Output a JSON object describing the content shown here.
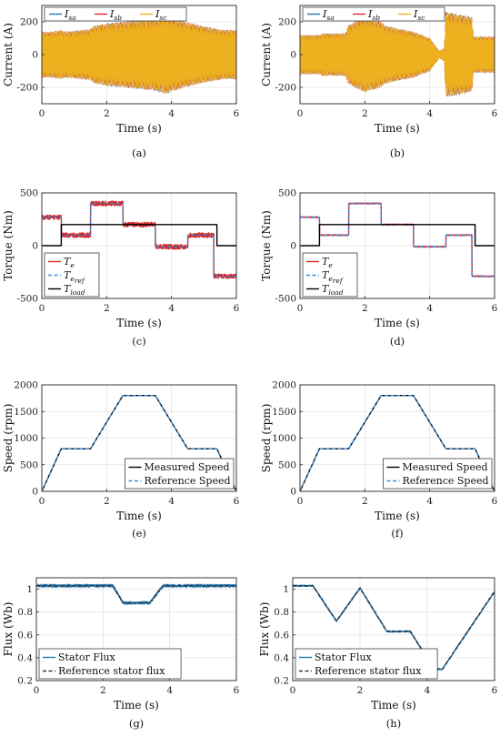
{
  "chart_data": [
    {
      "id": "a",
      "caption": "(a)",
      "type": "line",
      "xlabel": "Time (s)",
      "ylabel": "Current (A)",
      "xlim": [
        0,
        6
      ],
      "ylim": [
        -300,
        300
      ],
      "xticks": [
        0,
        2,
        4,
        6
      ],
      "yticks": [
        -200,
        0,
        200
      ],
      "xtick_labels": [
        "0",
        "2",
        "4",
        "6"
      ],
      "ytick_labels": [
        "-200",
        "0",
        "200"
      ],
      "grid": true,
      "legend_position": "top-left",
      "legend_layout": "horizontal",
      "series": [
        {
          "name": "I",
          "sub": "sa",
          "color": "#1f77b4",
          "style": "solid",
          "kind": "ac"
        },
        {
          "name": "I",
          "sub": "sb",
          "color": "#d62728",
          "style": "solid",
          "kind": "ac"
        },
        {
          "name": "I",
          "sub": "sc",
          "color": "#edb120",
          "style": "solid",
          "kind": "ac"
        }
      ],
      "envelope": {
        "x": [
          0,
          0.3,
          0.6,
          0.7,
          1.5,
          1.6,
          2.0,
          2.5,
          3.5,
          3.8,
          4.0,
          4.5,
          5.3,
          5.6,
          5.9,
          6.0
        ],
        "amp": [
          140,
          140,
          150,
          140,
          155,
          175,
          190,
          200,
          220,
          240,
          225,
          195,
          160,
          150,
          150,
          150
        ]
      }
    },
    {
      "id": "b",
      "caption": "(b)",
      "type": "line",
      "xlabel": "Time (s)",
      "ylabel": "Current (A)",
      "xlim": [
        0,
        6
      ],
      "ylim": [
        -300,
        300
      ],
      "xticks": [
        0,
        2,
        4,
        6
      ],
      "yticks": [
        -200,
        0,
        200
      ],
      "xtick_labels": [
        "0",
        "2",
        "4",
        "6"
      ],
      "ytick_labels": [
        "-200",
        "0",
        "200"
      ],
      "grid": true,
      "legend_position": "top-left",
      "legend_layout": "horizontal",
      "series": [
        {
          "name": "I",
          "sub": "sa",
          "color": "#1f77b4",
          "style": "solid",
          "kind": "ac"
        },
        {
          "name": "I",
          "sub": "sb",
          "color": "#d62728",
          "style": "solid",
          "kind": "ac"
        },
        {
          "name": "I",
          "sub": "sc",
          "color": "#edb120",
          "style": "solid",
          "kind": "ac"
        }
      ],
      "envelope": {
        "x": [
          0,
          0.6,
          0.7,
          1.4,
          1.5,
          2.0,
          2.5,
          2.6,
          3.0,
          3.5,
          4.0,
          4.3,
          4.45,
          4.5,
          5.3,
          5.35,
          6.0
        ],
        "amp": [
          120,
          120,
          130,
          130,
          180,
          230,
          200,
          180,
          160,
          140,
          100,
          20,
          40,
          260,
          230,
          110,
          110
        ]
      }
    },
    {
      "id": "c",
      "caption": "(c)",
      "type": "line",
      "xlabel": "Time (s)",
      "ylabel": "Torque (Nm)",
      "xlim": [
        0,
        6
      ],
      "ylim": [
        -500,
        500
      ],
      "xticks": [
        0,
        2,
        4,
        6
      ],
      "yticks": [
        -500,
        0,
        500
      ],
      "xtick_labels": [
        "0",
        "2",
        "4",
        "6"
      ],
      "ytick_labels": [
        "-500",
        "0",
        "500"
      ],
      "grid": true,
      "legend_position": "bottom-left",
      "legend_layout": "vertical",
      "series": [
        {
          "name": "T",
          "sub": "e",
          "color": "#d62728",
          "style": "solid",
          "kind": "step",
          "x": [
            0,
            0.6,
            0.6,
            1.5,
            1.5,
            2.5,
            2.5,
            3.5,
            3.5,
            4.5,
            4.5,
            5.3,
            5.3,
            6.0
          ],
          "y": [
            270,
            270,
            100,
            100,
            400,
            400,
            200,
            200,
            -10,
            -10,
            100,
            100,
            -290,
            -290
          ],
          "noise": 22
        },
        {
          "name": "T",
          "sub": "e",
          "subsub": "ref",
          "color": "#3a8fd9",
          "style": "dashed",
          "kind": "step",
          "x": [
            0,
            0.6,
            0.6,
            1.5,
            1.5,
            2.5,
            2.5,
            3.5,
            3.5,
            4.5,
            4.5,
            5.3,
            5.3,
            6.0
          ],
          "y": [
            270,
            270,
            100,
            100,
            400,
            400,
            200,
            200,
            -10,
            -10,
            100,
            100,
            -290,
            -290
          ]
        },
        {
          "name": "T",
          "sub": "load",
          "color": "#000000",
          "style": "solid",
          "kind": "step",
          "x": [
            0,
            0.6,
            0.6,
            5.4,
            5.4,
            6.0
          ],
          "y": [
            0,
            0,
            200,
            200,
            0,
            0
          ]
        }
      ]
    },
    {
      "id": "d",
      "caption": "(d)",
      "type": "line",
      "xlabel": "Time (s)",
      "ylabel": "Torque (Nm)",
      "xlim": [
        0,
        6
      ],
      "ylim": [
        -500,
        500
      ],
      "xticks": [
        0,
        2,
        4,
        6
      ],
      "yticks": [
        -500,
        0,
        500
      ],
      "xtick_labels": [
        "0",
        "2",
        "4",
        "6"
      ],
      "ytick_labels": [
        "-500",
        "0",
        "500"
      ],
      "grid": true,
      "legend_position": "bottom-left",
      "legend_layout": "vertical",
      "series": [
        {
          "name": "T",
          "sub": "e",
          "color": "#d62728",
          "style": "solid",
          "kind": "step",
          "x": [
            0,
            0.6,
            0.6,
            1.5,
            1.5,
            2.5,
            2.5,
            3.5,
            3.5,
            4.5,
            4.5,
            5.3,
            5.3,
            6.0
          ],
          "y": [
            270,
            270,
            100,
            100,
            400,
            400,
            200,
            200,
            -10,
            -10,
            100,
            100,
            -290,
            -290
          ],
          "noise": 4
        },
        {
          "name": "T",
          "sub": "e",
          "subsub": "ref",
          "color": "#3a8fd9",
          "style": "dashed",
          "kind": "step",
          "x": [
            0,
            0.6,
            0.6,
            1.5,
            1.5,
            2.5,
            2.5,
            3.5,
            3.5,
            4.5,
            4.5,
            5.3,
            5.3,
            6.0
          ],
          "y": [
            270,
            270,
            100,
            100,
            400,
            400,
            200,
            200,
            -10,
            -10,
            100,
            100,
            -290,
            -290
          ]
        },
        {
          "name": "T",
          "sub": "load",
          "color": "#000000",
          "style": "solid",
          "kind": "step",
          "x": [
            0,
            0.6,
            0.6,
            5.4,
            5.4,
            6.0
          ],
          "y": [
            0,
            0,
            200,
            200,
            0,
            0
          ]
        }
      ]
    },
    {
      "id": "e",
      "caption": "(e)",
      "type": "line",
      "xlabel": "Time (s)",
      "ylabel": "Speed (rpm)",
      "xlim": [
        0,
        6
      ],
      "ylim": [
        0,
        2000
      ],
      "xticks": [
        0,
        2,
        4,
        6
      ],
      "yticks": [
        0,
        500,
        1000,
        1500,
        2000
      ],
      "xtick_labels": [
        "0",
        "2",
        "4",
        "6"
      ],
      "ytick_labels": [
        "0",
        "500",
        "1000",
        "1500",
        "2000"
      ],
      "grid": true,
      "legend_position": "bottom-right",
      "legend_layout": "vertical",
      "series": [
        {
          "name": "Measured Speed",
          "color": "#000000",
          "style": "solid",
          "kind": "line",
          "x": [
            0,
            0.6,
            1.5,
            2.5,
            3.5,
            4.5,
            5.4,
            6.0
          ],
          "y": [
            0,
            800,
            800,
            1800,
            1800,
            800,
            800,
            0
          ]
        },
        {
          "name": "Reference Speed",
          "color": "#3a8fd9",
          "style": "dashed",
          "kind": "line",
          "x": [
            0,
            0.6,
            1.5,
            2.5,
            3.5,
            4.5,
            5.4,
            6.0
          ],
          "y": [
            0,
            800,
            800,
            1800,
            1800,
            800,
            800,
            0
          ]
        }
      ]
    },
    {
      "id": "f",
      "caption": "(f)",
      "type": "line",
      "xlabel": "Time (s)",
      "ylabel": "Speed (rpm)",
      "xlim": [
        0,
        6
      ],
      "ylim": [
        0,
        2000
      ],
      "xticks": [
        0,
        2,
        4,
        6
      ],
      "yticks": [
        0,
        500,
        1000,
        1500,
        2000
      ],
      "xtick_labels": [
        "0",
        "2",
        "4",
        "6"
      ],
      "ytick_labels": [
        "0",
        "500",
        "1000",
        "1500",
        "2000"
      ],
      "grid": true,
      "legend_position": "bottom-right",
      "legend_layout": "vertical",
      "series": [
        {
          "name": "Measured Speed",
          "color": "#000000",
          "style": "solid",
          "kind": "line",
          "x": [
            0,
            0.6,
            1.5,
            2.5,
            3.5,
            4.5,
            5.4,
            6.0
          ],
          "y": [
            0,
            800,
            800,
            1800,
            1800,
            800,
            800,
            0
          ]
        },
        {
          "name": "Reference Speed",
          "color": "#3a8fd9",
          "style": "dashed",
          "kind": "line",
          "x": [
            0,
            0.6,
            1.5,
            2.5,
            3.5,
            4.5,
            5.4,
            6.0
          ],
          "y": [
            0,
            800,
            800,
            1800,
            1800,
            800,
            800,
            0
          ]
        }
      ]
    },
    {
      "id": "g",
      "caption": "(g)",
      "type": "line",
      "xlabel": "Time (s)",
      "ylabel": "Flux (Wb)",
      "xlim": [
        0,
        6
      ],
      "ylim": [
        0.2,
        1.1
      ],
      "xticks": [
        0,
        2,
        4,
        6
      ],
      "yticks": [
        0.2,
        0.4,
        0.6,
        0.8,
        1.0
      ],
      "xtick_labels": [
        "0",
        "2",
        "4",
        "6"
      ],
      "ytick_labels": [
        "0.2",
        "0.4",
        "0.6",
        "0.8",
        "1"
      ],
      "grid": true,
      "legend_position": "bottom-left",
      "legend_layout": "vertical",
      "series": [
        {
          "name": "Stator Flux",
          "color": "#1f77b4",
          "style": "solid",
          "kind": "line",
          "x": [
            0,
            2.3,
            2.6,
            3.4,
            3.8,
            6.0
          ],
          "y": [
            1.03,
            1.03,
            0.88,
            0.88,
            1.03,
            1.03
          ],
          "noise": 0.012
        },
        {
          "name": "Reference stator flux",
          "color": "#333333",
          "style": "dashed",
          "kind": "line",
          "x": [
            0,
            2.3,
            2.6,
            3.4,
            3.8,
            6.0
          ],
          "y": [
            1.03,
            1.03,
            0.88,
            0.88,
            1.03,
            1.03
          ]
        }
      ]
    },
    {
      "id": "h",
      "caption": "(h)",
      "type": "line",
      "xlabel": "Time (s)",
      "ylabel": "Flux (Wb)",
      "xlim": [
        0,
        6
      ],
      "ylim": [
        0.2,
        1.1
      ],
      "xticks": [
        0,
        2,
        4,
        6
      ],
      "yticks": [
        0.2,
        0.4,
        0.6,
        0.8,
        1.0
      ],
      "xtick_labels": [
        "0",
        "2",
        "4",
        "6"
      ],
      "ytick_labels": [
        "0.2",
        "0.4",
        "0.6",
        "0.8",
        "1"
      ],
      "grid": true,
      "legend_position": "bottom-left",
      "legend_layout": "vertical",
      "series": [
        {
          "name": "Stator Flux",
          "color": "#1f77b4",
          "style": "solid",
          "kind": "line",
          "x": [
            0,
            0.6,
            1.3,
            2.0,
            2.8,
            3.5,
            4.2,
            4.45,
            6.0
          ],
          "y": [
            1.03,
            1.03,
            0.72,
            1.01,
            0.63,
            0.63,
            0.3,
            0.3,
            0.98
          ],
          "noise": 0.006
        },
        {
          "name": "Reference stator flux",
          "color": "#333333",
          "style": "dashed",
          "kind": "line",
          "x": [
            0,
            0.6,
            1.3,
            2.0,
            2.8,
            3.5,
            4.2,
            4.45,
            6.0
          ],
          "y": [
            1.03,
            1.03,
            0.72,
            1.01,
            0.63,
            0.63,
            0.3,
            0.3,
            0.98
          ]
        }
      ]
    }
  ]
}
